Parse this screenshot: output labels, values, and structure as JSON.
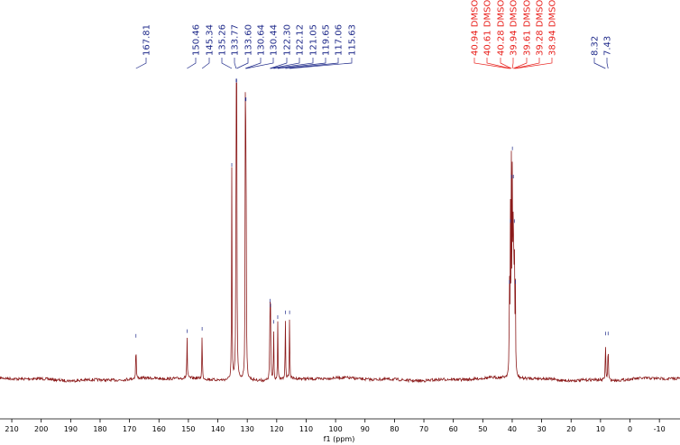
{
  "chart_data": {
    "type": "line",
    "title": "",
    "xlabel": "f1 (ppm)",
    "ylabel": "",
    "xlim": [
      214,
      -17
    ],
    "x_reversed": true,
    "grid": false,
    "x_ticks": [
      210,
      200,
      190,
      180,
      170,
      160,
      150,
      140,
      130,
      120,
      110,
      100,
      90,
      80,
      70,
      60,
      50,
      40,
      30,
      20,
      10,
      0,
      -10
    ],
    "x_tick_labels": [
      "210",
      "200",
      "190",
      "180",
      "170",
      "160",
      "150",
      "140",
      "130",
      "120",
      "110",
      "100",
      "90",
      "80",
      "70",
      "60",
      "50",
      "40",
      "30",
      "20",
      "10",
      "0",
      "-10"
    ],
    "line_color": "#8b1a1a",
    "peaks": [
      {
        "ppm": 167.81,
        "intensity": 0.17
      },
      {
        "ppm": 150.46,
        "intensity": 0.19
      },
      {
        "ppm": 145.34,
        "intensity": 0.2
      },
      {
        "ppm": 135.26,
        "intensity": 0.9
      },
      {
        "ppm": 133.77,
        "intensity": 1.26
      },
      {
        "ppm": 133.6,
        "intensity": 1.26
      },
      {
        "ppm": 130.64,
        "intensity": 1.18
      },
      {
        "ppm": 130.44,
        "intensity": 1.18
      },
      {
        "ppm": 122.3,
        "intensity": 0.32
      },
      {
        "ppm": 122.12,
        "intensity": 0.3
      },
      {
        "ppm": 121.05,
        "intensity": 0.23
      },
      {
        "ppm": 119.65,
        "intensity": 0.25
      },
      {
        "ppm": 117.06,
        "intensity": 0.27
      },
      {
        "ppm": 115.63,
        "intensity": 0.27
      },
      {
        "ppm": 40.94,
        "intensity": 0.4
      },
      {
        "ppm": 40.61,
        "intensity": 0.66
      },
      {
        "ppm": 40.28,
        "intensity": 0.85
      },
      {
        "ppm": 39.94,
        "intensity": 0.97
      },
      {
        "ppm": 39.61,
        "intensity": 0.85
      },
      {
        "ppm": 39.28,
        "intensity": 0.66
      },
      {
        "ppm": 38.94,
        "intensity": 0.4
      },
      {
        "ppm": 8.32,
        "intensity": 0.18
      },
      {
        "ppm": 7.43,
        "intensity": 0.18
      }
    ],
    "peak_label_groups": [
      {
        "color": "#1f2a8a",
        "labels": [
          "167.81"
        ],
        "ppm": [
          167.81
        ]
      },
      {
        "color": "#1f2a8a",
        "labels": [
          "150.46",
          "145.34",
          "135.26",
          "133.77",
          "133.60",
          "130.64",
          "130.44",
          "122.30",
          "122.12",
          "121.05",
          "119.65",
          "117.06",
          "115.63"
        ],
        "ppm": [
          150.46,
          145.34,
          135.26,
          133.77,
          133.6,
          130.64,
          130.44,
          122.3,
          122.12,
          121.05,
          119.65,
          117.06,
          115.63
        ]
      },
      {
        "color": "#e8201c",
        "labels": [
          "40.94 DMSO",
          "40.61 DMSO",
          "40.28 DMSO",
          "39.94 DMSO",
          "39.61 DMSO",
          "39.28 DMSO",
          "38.94 DMSO"
        ],
        "ppm": [
          40.94,
          40.61,
          40.28,
          39.94,
          39.61,
          39.28,
          38.94
        ]
      },
      {
        "color": "#1f2a8a",
        "labels": [
          "8.32",
          "7.43"
        ],
        "ppm": [
          8.32,
          7.43
        ]
      }
    ]
  }
}
